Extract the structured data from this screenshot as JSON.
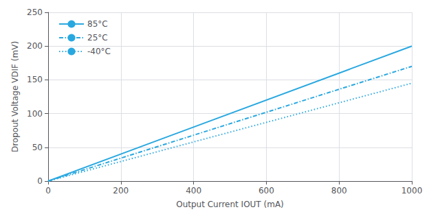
{
  "chart_data": {
    "type": "line",
    "x_label": "Output Current IOUT (mA)",
    "y_label": "Dropout Voltage VDIF (mV)",
    "x": [
      0,
      1000
    ],
    "series": [
      {
        "name": "85°C",
        "color": "#29a8e0",
        "line_style": "solid",
        "values": [
          0,
          200
        ]
      },
      {
        "name": "25°C",
        "color": "#29a8e0",
        "line_style": "dashdot",
        "values": [
          0,
          170
        ]
      },
      {
        "name": "-40°C",
        "color": "#29a8e0",
        "line_style": "dotted",
        "values": [
          0,
          145
        ]
      }
    ],
    "xlim": [
      0,
      1000
    ],
    "ylim": [
      0,
      250
    ],
    "xticks": [
      0,
      200,
      400,
      600,
      800,
      1000
    ],
    "yticks": [
      0,
      50,
      100,
      150,
      200,
      250
    ],
    "grid": true,
    "legend": "upper left"
  }
}
